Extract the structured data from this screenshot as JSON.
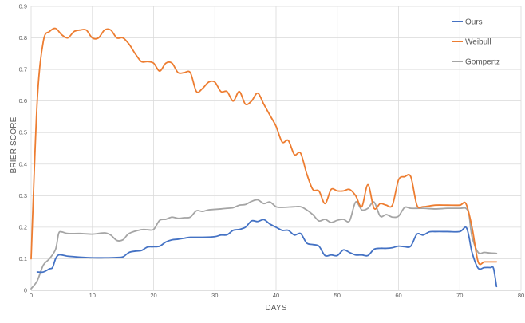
{
  "chart_data": {
    "type": "line",
    "title": "",
    "xlabel": "DAYS",
    "ylabel": "BRIER SCORE",
    "xlim": [
      0,
      80
    ],
    "ylim": [
      0,
      0.9
    ],
    "x_ticks": [
      "0",
      "10",
      "20",
      "30",
      "40",
      "50",
      "60",
      "70",
      "80"
    ],
    "y_ticks": [
      "0",
      "0.1",
      "0.2",
      "0.3",
      "0.4",
      "0.5",
      "0.6",
      "0.7",
      "0.8",
      "0.9"
    ],
    "grid": true,
    "legend_position": "top-right",
    "series": [
      {
        "name": "Ours",
        "color": "#4472C4",
        "points": [
          [
            1,
            0.058
          ],
          [
            2,
            0.058
          ],
          [
            3,
            0.068
          ],
          [
            3.5,
            0.072
          ],
          [
            4,
            0.1
          ],
          [
            4.5,
            0.112
          ],
          [
            5.5,
            0.11
          ],
          [
            6,
            0.108
          ],
          [
            8,
            0.105
          ],
          [
            10,
            0.103
          ],
          [
            12,
            0.103
          ],
          [
            14,
            0.104
          ],
          [
            15,
            0.106
          ],
          [
            16,
            0.12
          ],
          [
            17,
            0.124
          ],
          [
            18,
            0.126
          ],
          [
            19,
            0.137
          ],
          [
            20,
            0.138
          ],
          [
            21,
            0.14
          ],
          [
            22,
            0.153
          ],
          [
            23,
            0.16
          ],
          [
            24,
            0.162
          ],
          [
            25,
            0.165
          ],
          [
            26,
            0.168
          ],
          [
            28,
            0.168
          ],
          [
            30,
            0.17
          ],
          [
            31,
            0.175
          ],
          [
            32,
            0.176
          ],
          [
            33,
            0.19
          ],
          [
            34,
            0.193
          ],
          [
            35,
            0.2
          ],
          [
            36,
            0.22
          ],
          [
            37,
            0.218
          ],
          [
            38,
            0.224
          ],
          [
            39,
            0.21
          ],
          [
            40,
            0.2
          ],
          [
            41,
            0.19
          ],
          [
            42,
            0.19
          ],
          [
            43,
            0.175
          ],
          [
            44,
            0.18
          ],
          [
            45,
            0.15
          ],
          [
            46,
            0.145
          ],
          [
            47,
            0.14
          ],
          [
            48,
            0.11
          ],
          [
            49,
            0.112
          ],
          [
            50,
            0.11
          ],
          [
            51,
            0.128
          ],
          [
            52,
            0.12
          ],
          [
            53,
            0.112
          ],
          [
            54,
            0.112
          ],
          [
            55,
            0.11
          ],
          [
            56,
            0.13
          ],
          [
            57,
            0.133
          ],
          [
            58,
            0.133
          ],
          [
            59,
            0.135
          ],
          [
            60,
            0.14
          ],
          [
            61,
            0.138
          ],
          [
            62,
            0.14
          ],
          [
            63,
            0.178
          ],
          [
            64,
            0.175
          ],
          [
            65,
            0.185
          ],
          [
            66,
            0.186
          ],
          [
            68,
            0.186
          ],
          [
            70,
            0.186
          ],
          [
            71,
            0.2
          ],
          [
            71.5,
            0.17
          ],
          [
            72,
            0.12
          ],
          [
            73,
            0.07
          ],
          [
            74,
            0.072
          ],
          [
            75,
            0.072
          ],
          [
            75.5,
            0.07
          ],
          [
            76,
            0.012
          ]
        ]
      },
      {
        "name": "Weibull",
        "color": "#ED7D31",
        "points": [
          [
            0,
            0.1
          ],
          [
            1,
            0.6
          ],
          [
            2,
            0.79
          ],
          [
            3,
            0.82
          ],
          [
            4,
            0.83
          ],
          [
            5,
            0.81
          ],
          [
            6,
            0.8
          ],
          [
            7,
            0.82
          ],
          [
            8,
            0.825
          ],
          [
            9,
            0.825
          ],
          [
            10,
            0.8
          ],
          [
            11,
            0.8
          ],
          [
            12,
            0.825
          ],
          [
            13,
            0.825
          ],
          [
            14,
            0.8
          ],
          [
            15,
            0.8
          ],
          [
            16,
            0.78
          ],
          [
            17,
            0.75
          ],
          [
            18,
            0.725
          ],
          [
            19,
            0.725
          ],
          [
            20,
            0.72
          ],
          [
            21,
            0.695
          ],
          [
            22,
            0.72
          ],
          [
            23,
            0.72
          ],
          [
            24,
            0.69
          ],
          [
            25,
            0.69
          ],
          [
            26,
            0.69
          ],
          [
            27,
            0.63
          ],
          [
            28,
            0.64
          ],
          [
            29,
            0.66
          ],
          [
            30,
            0.66
          ],
          [
            31,
            0.63
          ],
          [
            32,
            0.63
          ],
          [
            33,
            0.6
          ],
          [
            34,
            0.63
          ],
          [
            35,
            0.59
          ],
          [
            36,
            0.6
          ],
          [
            37,
            0.625
          ],
          [
            38,
            0.59
          ],
          [
            39,
            0.555
          ],
          [
            40,
            0.52
          ],
          [
            41,
            0.47
          ],
          [
            42,
            0.475
          ],
          [
            43,
            0.43
          ],
          [
            44,
            0.435
          ],
          [
            45,
            0.37
          ],
          [
            46,
            0.32
          ],
          [
            47,
            0.315
          ],
          [
            48,
            0.275
          ],
          [
            49,
            0.32
          ],
          [
            50,
            0.315
          ],
          [
            51,
            0.315
          ],
          [
            52,
            0.32
          ],
          [
            53,
            0.3
          ],
          [
            54,
            0.265
          ],
          [
            55,
            0.335
          ],
          [
            56,
            0.26
          ],
          [
            57,
            0.275
          ],
          [
            58,
            0.27
          ],
          [
            59,
            0.27
          ],
          [
            60,
            0.35
          ],
          [
            61,
            0.36
          ],
          [
            62,
            0.36
          ],
          [
            63,
            0.27
          ],
          [
            64,
            0.265
          ],
          [
            66,
            0.27
          ],
          [
            68,
            0.27
          ],
          [
            70,
            0.27
          ],
          [
            71,
            0.275
          ],
          [
            72,
            0.2
          ],
          [
            73,
            0.09
          ],
          [
            74,
            0.09
          ],
          [
            75,
            0.09
          ],
          [
            76,
            0.09
          ]
        ]
      },
      {
        "name": "Gompertz",
        "color": "#A5A5A5",
        "points": [
          [
            0,
            0.005
          ],
          [
            1,
            0.03
          ],
          [
            2,
            0.08
          ],
          [
            3,
            0.1
          ],
          [
            4,
            0.13
          ],
          [
            4.5,
            0.18
          ],
          [
            5,
            0.185
          ],
          [
            6,
            0.18
          ],
          [
            8,
            0.18
          ],
          [
            10,
            0.178
          ],
          [
            12,
            0.182
          ],
          [
            13,
            0.175
          ],
          [
            14,
            0.158
          ],
          [
            15,
            0.16
          ],
          [
            16,
            0.18
          ],
          [
            18,
            0.192
          ],
          [
            19,
            0.192
          ],
          [
            20,
            0.193
          ],
          [
            21,
            0.222
          ],
          [
            22,
            0.225
          ],
          [
            23,
            0.232
          ],
          [
            24,
            0.228
          ],
          [
            25,
            0.23
          ],
          [
            26,
            0.232
          ],
          [
            27,
            0.252
          ],
          [
            28,
            0.25
          ],
          [
            29,
            0.255
          ],
          [
            31,
            0.258
          ],
          [
            32,
            0.26
          ],
          [
            33,
            0.262
          ],
          [
            34,
            0.27
          ],
          [
            35,
            0.272
          ],
          [
            36,
            0.282
          ],
          [
            37,
            0.287
          ],
          [
            38,
            0.275
          ],
          [
            39,
            0.28
          ],
          [
            40,
            0.265
          ],
          [
            41,
            0.263
          ],
          [
            43,
            0.265
          ],
          [
            44,
            0.265
          ],
          [
            45,
            0.255
          ],
          [
            46,
            0.24
          ],
          [
            47,
            0.22
          ],
          [
            48,
            0.225
          ],
          [
            49,
            0.215
          ],
          [
            50,
            0.222
          ],
          [
            51,
            0.225
          ],
          [
            52,
            0.22
          ],
          [
            53,
            0.28
          ],
          [
            54,
            0.255
          ],
          [
            55,
            0.26
          ],
          [
            56,
            0.28
          ],
          [
            57,
            0.235
          ],
          [
            58,
            0.24
          ],
          [
            59,
            0.232
          ],
          [
            60,
            0.235
          ],
          [
            61,
            0.263
          ],
          [
            62,
            0.26
          ],
          [
            64,
            0.26
          ],
          [
            66,
            0.258
          ],
          [
            68,
            0.26
          ],
          [
            70,
            0.26
          ],
          [
            71,
            0.26
          ],
          [
            71.5,
            0.24
          ],
          [
            72,
            0.17
          ],
          [
            73,
            0.12
          ],
          [
            74,
            0.12
          ],
          [
            75,
            0.118
          ],
          [
            76,
            0.117
          ]
        ]
      }
    ]
  }
}
